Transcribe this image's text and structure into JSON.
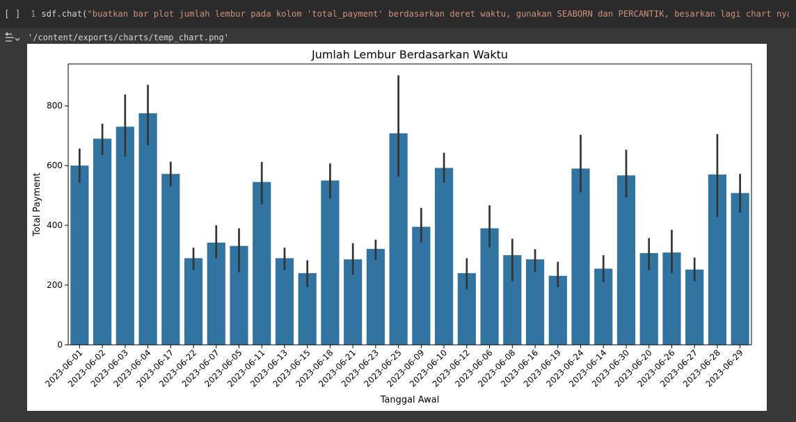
{
  "cell": {
    "run_indicator": "[ ]",
    "line_number": "1",
    "code_prefix": "sdf.chat(",
    "code_string": "\"buatkan bar plot jumlah lembur pada kolom 'total_payment' berdasarkan deret waktu, gunakan SEABORN dan PERCANTIK, besarkan lagi chart nya \"",
    "code_suffix": ")"
  },
  "output": {
    "text": "'/content/exports/charts/temp_chart.png'"
  },
  "colors": {
    "bar": "#3274a1",
    "errorbar": "#333333",
    "page_bg": "#383838",
    "cell_bg": "#2b2b2b"
  },
  "chart_data": {
    "type": "bar",
    "title": "Jumlah Lembur Berdasarkan Waktu",
    "xlabel": "Tanggal Awal",
    "ylabel": "Total Payment",
    "ylim": [
      0,
      940
    ],
    "yticks": [
      0,
      200,
      400,
      600,
      800
    ],
    "grid": false,
    "legend": "none",
    "categories": [
      "2023-06-01",
      "2023-06-02",
      "2023-06-03",
      "2023-06-04",
      "2023-06-17",
      "2023-06-22",
      "2023-06-07",
      "2023-06-05",
      "2023-06-11",
      "2023-06-13",
      "2023-06-15",
      "2023-06-18",
      "2023-06-21",
      "2023-06-23",
      "2023-06-25",
      "2023-06-09",
      "2023-06-10",
      "2023-06-12",
      "2023-06-06",
      "2023-06-08",
      "2023-06-16",
      "2023-06-19",
      "2023-06-24",
      "2023-06-14",
      "2023-06-30",
      "2023-06-20",
      "2023-06-26",
      "2023-06-27",
      "2023-06-28",
      "2023-06-29"
    ],
    "values": [
      600,
      690,
      730,
      775,
      572,
      290,
      342,
      331,
      545,
      290,
      240,
      550,
      286,
      321,
      708,
      395,
      592,
      240,
      390,
      300,
      286,
      231,
      590,
      255,
      567,
      307,
      309,
      252,
      570,
      508
    ],
    "error_low": [
      542,
      635,
      630,
      668,
      530,
      250,
      290,
      243,
      470,
      250,
      193,
      490,
      235,
      284,
      563,
      342,
      543,
      185,
      326,
      213,
      244,
      193,
      510,
      210,
      493,
      250,
      240,
      213,
      428,
      443
    ],
    "error_high": [
      657,
      740,
      838,
      870,
      613,
      325,
      400,
      390,
      612,
      325,
      283,
      607,
      340,
      352,
      902,
      458,
      643,
      290,
      467,
      355,
      320,
      278,
      703,
      300,
      653,
      357,
      385,
      292,
      705,
      572
    ]
  }
}
